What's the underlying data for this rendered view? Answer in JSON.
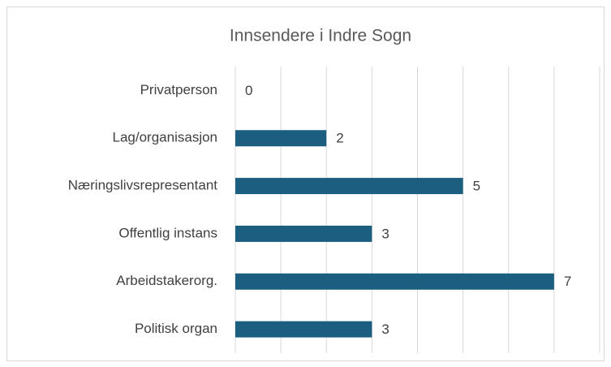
{
  "chart_data": {
    "type": "hbar",
    "title": "Innsendere i Indre Sogn",
    "categories": [
      "Privatperson",
      "Lag/organisasjon",
      "Næringslivsrepresentant",
      "Offentlig instans",
      "Arbeidstakerorg.",
      "Politisk organ"
    ],
    "values": [
      0,
      2,
      5,
      3,
      7,
      3
    ],
    "color": "#1b5e7f",
    "xlim": [
      0,
      8
    ],
    "xticks": [
      0,
      1,
      2,
      3,
      4,
      5,
      6,
      7,
      8
    ],
    "grid": true
  }
}
